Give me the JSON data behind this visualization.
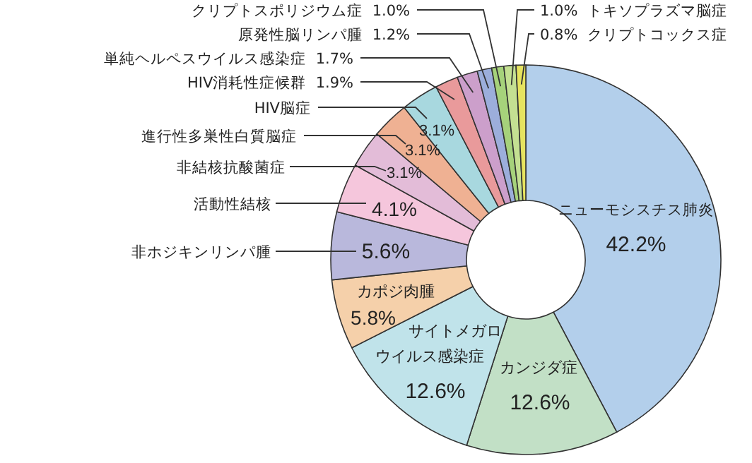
{
  "chart_data": {
    "type": "donut",
    "categories": [
      "ニューモシスチス肺炎",
      "カンジダ症",
      "サイトメガロウイルス感染症",
      "カポジ肉腫",
      "非ホジキンリンパ腫",
      "活動性結核",
      "非結核抗酸菌症",
      "進行性多巣性白質脳症",
      "HIV脳症",
      "HIV消耗性症候群",
      "単純ヘルペスウイルス感染症",
      "原発性脳リンパ腫",
      "クリプトスポリジウム症",
      "トキソプラズマ脳症",
      "クリプトコックス症"
    ],
    "values": [
      42.2,
      12.6,
      12.6,
      5.8,
      5.6,
      4.1,
      3.1,
      3.1,
      3.1,
      1.9,
      1.7,
      1.2,
      1.0,
      1.0,
      0.8
    ],
    "value_labels": [
      "42.2%",
      "12.6%",
      "12.6%",
      "5.8%",
      "5.6%",
      "4.1%",
      "3.1%",
      "3.1%",
      "3.1%",
      "1.9%",
      "1.7%",
      "1.2%",
      "1.0%",
      "1.0%",
      "0.8%"
    ],
    "colors": [
      "#b3cfeb",
      "#c2e0c6",
      "#c0e3ea",
      "#f5d0aa",
      "#b9b8dc",
      "#f5c6dc",
      "#e3bcd8",
      "#efb193",
      "#a8d8df",
      "#e99a9b",
      "#cc9fcb",
      "#9caedb",
      "#a6d27b",
      "#c4e092",
      "#e6e35f"
    ]
  }
}
